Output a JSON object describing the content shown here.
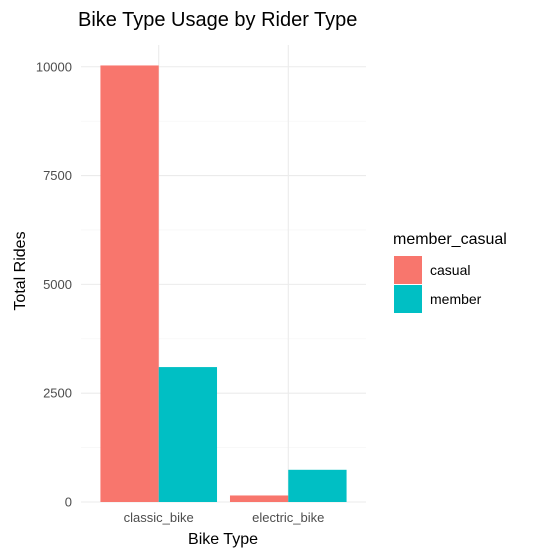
{
  "chart_data": {
    "type": "bar",
    "title": "Bike Type Usage by Rider Type",
    "xlabel": "Bike Type",
    "ylabel": "Total Rides",
    "categories": [
      "classic_bike",
      "electric_bike"
    ],
    "series": [
      {
        "name": "casual",
        "color": "#F8766D",
        "values": [
          10030,
          150
        ]
      },
      {
        "name": "member",
        "color": "#00BFC4",
        "values": [
          3100,
          740
        ]
      }
    ],
    "ylim": [
      0,
      10500
    ],
    "yticks": [
      0,
      2500,
      5000,
      7500,
      10000
    ],
    "ytick_labels": [
      "0",
      "2500",
      "5000",
      "7500",
      "10000"
    ],
    "grid": true,
    "legend": {
      "title": "member_casual",
      "placement": "right"
    }
  }
}
